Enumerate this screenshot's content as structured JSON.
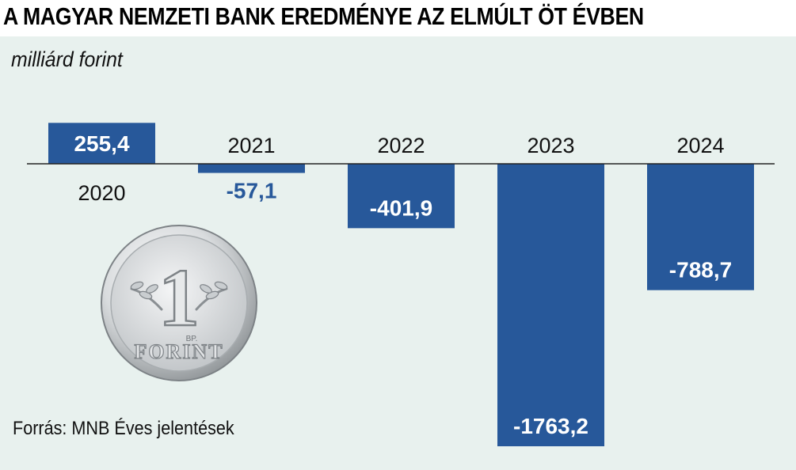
{
  "title": "A MAGYAR NEMZETI BANK EREDMÉNYE AZ ELMÚLT ÖT ÉVBEN",
  "unit": "milliárd forint",
  "source": "Forrás: MNB Éves jelentések",
  "colors": {
    "bar": "#27589a",
    "background": "#e8f1ee",
    "value_label_negative": "#27589a"
  },
  "coin": {
    "denomination": "1",
    "text": "FORINT",
    "mint_mark": "BP."
  },
  "chart_data": {
    "type": "bar",
    "title": "A MAGYAR NEMZETI BANK EREDMÉNYE AZ ELMÚLT ÖT ÉVBEN",
    "ylabel": "milliárd forint",
    "categories": [
      "2020",
      "2021",
      "2022",
      "2023",
      "2024"
    ],
    "values": [
      255.4,
      -57.1,
      -401.9,
      -1763.2,
      -788.7
    ],
    "value_labels": [
      "255,4",
      "-57,1",
      "-401,9",
      "-1763,2",
      "-788,7"
    ],
    "ylim": [
      -1763.2,
      255.4
    ],
    "grid": false,
    "legend": "none"
  }
}
